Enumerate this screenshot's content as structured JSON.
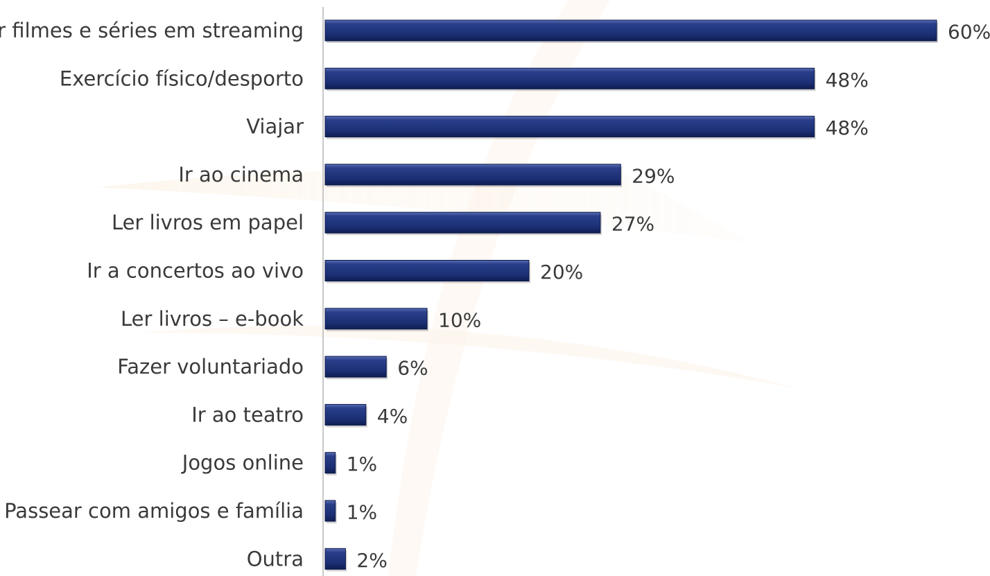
{
  "chart_data": {
    "type": "bar",
    "orientation": "horizontal",
    "categories": [
      "Ver filmes e séries em streaming",
      "Exercício físico/desporto",
      "Viajar",
      "Ir ao cinema",
      "Ler livros em papel",
      "Ir a concertos ao vivo",
      "Ler livros – e-book",
      "Fazer voluntariado",
      "Ir ao teatro",
      "Jogos online",
      "Passear com amigos e família",
      "Outra"
    ],
    "values": [
      60,
      48,
      48,
      29,
      27,
      20,
      10,
      6,
      4,
      1,
      1,
      2
    ],
    "value_labels": [
      "60%",
      "48%",
      "48%",
      "29%",
      "27%",
      "20%",
      "10%",
      "6%",
      "4%",
      "1%",
      "1%",
      "2%"
    ],
    "unit": "%",
    "xlim": [
      0,
      60
    ],
    "grid": false,
    "legend": "none",
    "colors": {
      "bar": "#1b2f74",
      "bar_highlight": "#4a5fa8",
      "bar_shadow": "#0d1a4a",
      "axis": "#c8c8c8",
      "text": "#3a3a3a",
      "watermark": "#f6e8d6"
    }
  }
}
